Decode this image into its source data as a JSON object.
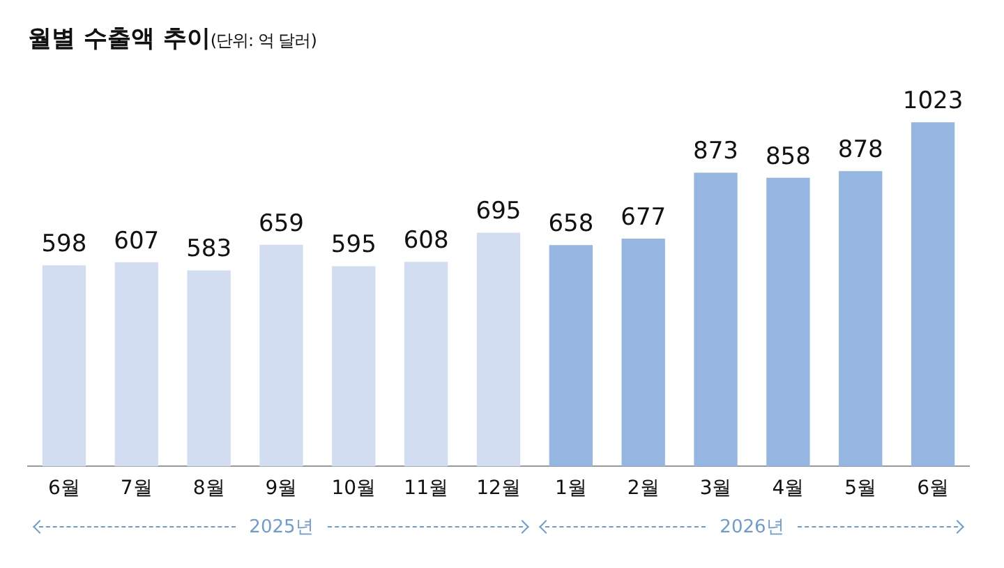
{
  "chart_data": {
    "type": "bar",
    "title": "월별 수출액 추이",
    "subtitle": "(단위: 억 달러)",
    "categories": [
      "6월",
      "7월",
      "8월",
      "9월",
      "10월",
      "11월",
      "12월",
      "1월",
      "2월",
      "3월",
      "4월",
      "5월",
      "6월"
    ],
    "values": [
      598,
      607,
      583,
      659,
      595,
      608,
      695,
      658,
      677,
      873,
      858,
      878,
      1023
    ],
    "colors": [
      "#d3ddf1",
      "#d3ddf1",
      "#d3ddf1",
      "#d3ddf1",
      "#d3ddf1",
      "#d3ddf1",
      "#d3ddf1",
      "#94b6e1",
      "#94b6e1",
      "#94b6e1",
      "#94b6e1",
      "#94b6e1",
      "#94b6e1"
    ],
    "data_labels": true,
    "grid": false,
    "legend": false,
    "annotations": [
      "2025년",
      "2026년"
    ]
  }
}
